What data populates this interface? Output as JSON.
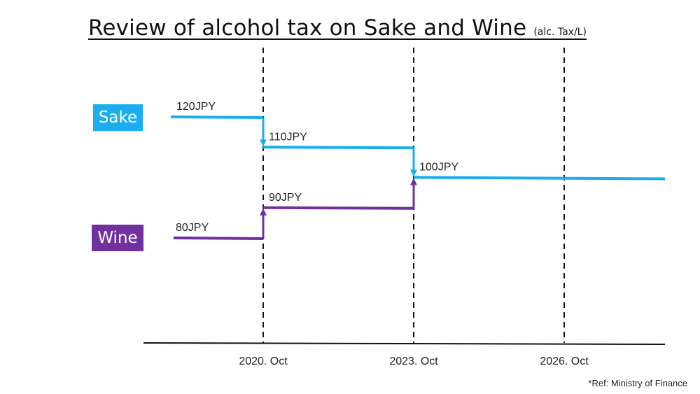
{
  "chart_data": {
    "type": "line",
    "title": "Review of alcohol tax on Sake and Wine",
    "subtitle": "(alc. Tax/L)",
    "x_ticks": [
      "2020. Oct",
      "2023. Oct",
      "2026. Oct"
    ],
    "series": [
      {
        "name": "Sake",
        "color": "#1badf0",
        "steps": [
          {
            "period": "before 2020. Oct",
            "value": 120,
            "label": "120JPY"
          },
          {
            "period": "2020. Oct",
            "value": 110,
            "label": "110JPY"
          },
          {
            "period": "2023. Oct",
            "value": 100,
            "label": "100JPY"
          }
        ]
      },
      {
        "name": "Wine",
        "color": "#7030a0",
        "steps": [
          {
            "period": "before 2020. Oct",
            "value": 80,
            "label": "80JPY"
          },
          {
            "period": "2020. Oct",
            "value": 90,
            "label": "90JPY"
          },
          {
            "period": "2023. Oct",
            "value": 100,
            "label": ""
          }
        ]
      }
    ],
    "grid": "dashed vertical lines at tick dates"
  },
  "reference": "*Ref: Ministry of Finance"
}
